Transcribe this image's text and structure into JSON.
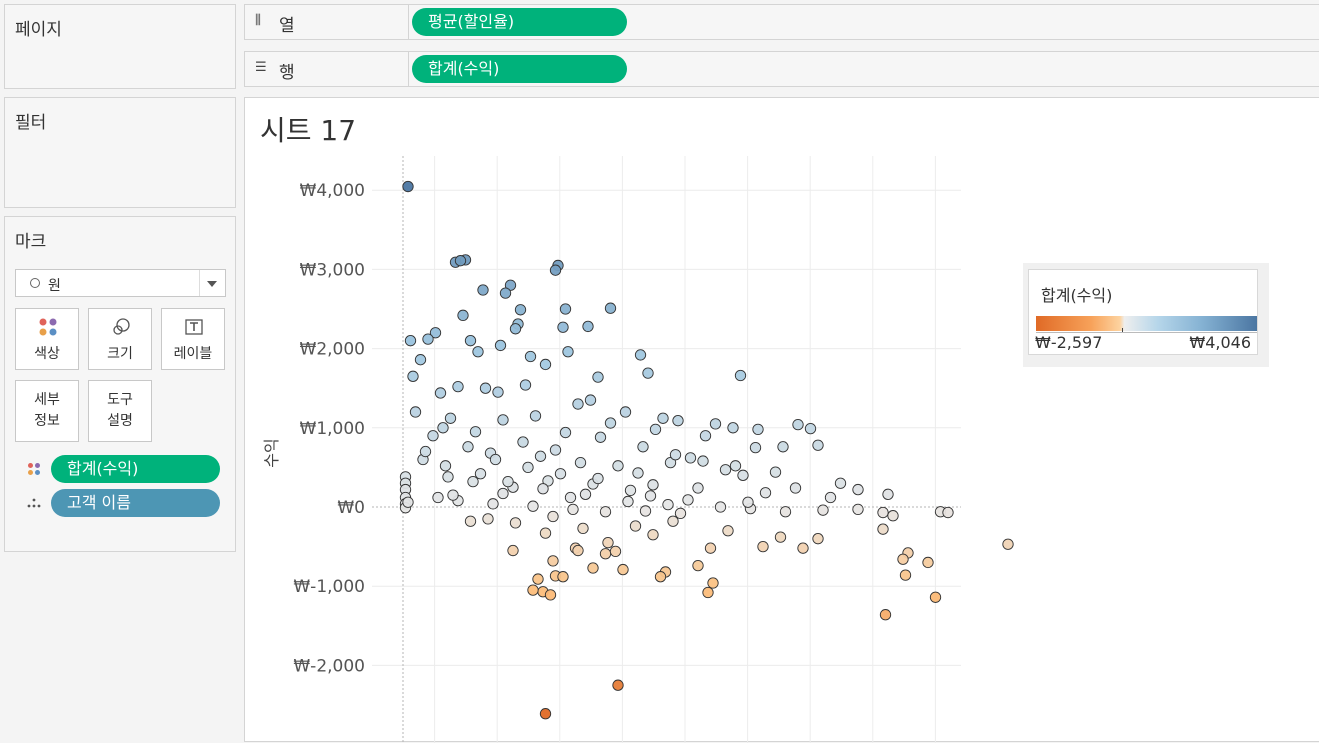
{
  "sidebar": {
    "pages_title": "페이지",
    "filters_title": "필터",
    "marks_title": "마크",
    "mark_type": "원",
    "buttons": {
      "color": "색상",
      "size": "크기",
      "label": "레이블",
      "detail": "세부\n정보",
      "tooltip": "도구\n설명"
    },
    "mark_pills": {
      "color_field": "합계(수익)",
      "detail_field": "고객 이름"
    }
  },
  "shelves": {
    "columns_label": "열",
    "columns_pill": "평균(할인율)",
    "rows_label": "행",
    "rows_pill": "합계(수익)"
  },
  "sheet": {
    "title": "시트 17"
  },
  "legend": {
    "title": "합계(수익)",
    "min_label": "₩-2,597",
    "max_label": "₩4,046"
  },
  "colors": {
    "pill_green": "#00b27b",
    "pill_blue": "#4d96b4",
    "positive_max": "#4b76a2",
    "negative_max": "#e06a26",
    "neutral": "#eeeeee"
  },
  "chart_data": {
    "type": "scatter",
    "title": "",
    "xlabel": "",
    "ylabel": "수익",
    "ylim": [
      -2800,
      4200
    ],
    "yticks": [
      4000,
      3000,
      2000,
      1000,
      0,
      -1000,
      -2000
    ],
    "ytick_labels": [
      "₩4,000",
      "₩3,000",
      "₩2,000",
      "₩1,000",
      "₩0",
      "₩-1,000",
      "₩-2,000"
    ],
    "x_unit": "average discount (index positions, unlabeled axis)",
    "color_range": [
      -2597,
      4046
    ],
    "points": [
      [
        0.02,
        4046
      ],
      [
        0.25,
        3120
      ],
      [
        0.21,
        3090
      ],
      [
        0.23,
        3110
      ],
      [
        0.62,
        3050
      ],
      [
        0.61,
        2990
      ],
      [
        0.43,
        2800
      ],
      [
        0.41,
        2700
      ],
      [
        0.32,
        2740
      ],
      [
        0.83,
        2510
      ],
      [
        0.65,
        2500
      ],
      [
        0.47,
        2490
      ],
      [
        0.24,
        2420
      ],
      [
        0.46,
        2310
      ],
      [
        0.45,
        2250
      ],
      [
        0.13,
        2200
      ],
      [
        0.64,
        2270
      ],
      [
        0.74,
        2280
      ],
      [
        0.03,
        2100
      ],
      [
        0.27,
        2100
      ],
      [
        0.1,
        2120
      ],
      [
        0.39,
        2040
      ],
      [
        0.66,
        1960
      ],
      [
        0.95,
        1920
      ],
      [
        0.07,
        1860
      ],
      [
        0.3,
        1960
      ],
      [
        0.51,
        1900
      ],
      [
        0.78,
        1640
      ],
      [
        0.04,
        1650
      ],
      [
        0.98,
        1690
      ],
      [
        1.35,
        1660
      ],
      [
        0.57,
        1800
      ],
      [
        0.49,
        1540
      ],
      [
        0.15,
        1440
      ],
      [
        0.22,
        1520
      ],
      [
        0.33,
        1500
      ],
      [
        0.05,
        1200
      ],
      [
        0.38,
        1450
      ],
      [
        0.7,
        1300
      ],
      [
        0.75,
        1350
      ],
      [
        0.89,
        1200
      ],
      [
        1.04,
        1120
      ],
      [
        1.1,
        1090
      ],
      [
        1.25,
        1050
      ],
      [
        1.32,
        1000
      ],
      [
        1.42,
        980
      ],
      [
        1.58,
        1040
      ],
      [
        1.63,
        990
      ],
      [
        1.66,
        780
      ],
      [
        1.52,
        760
      ],
      [
        1.41,
        750
      ],
      [
        1.21,
        900
      ],
      [
        1.01,
        980
      ],
      [
        0.83,
        1060
      ],
      [
        0.19,
        1120
      ],
      [
        0.48,
        820
      ],
      [
        0.61,
        720
      ],
      [
        0.08,
        600
      ],
      [
        0.12,
        900
      ],
      [
        0.26,
        760
      ],
      [
        0.35,
        680
      ],
      [
        0.55,
        640
      ],
      [
        0.71,
        560
      ],
      [
        0.86,
        520
      ],
      [
        0.94,
        430
      ],
      [
        1.07,
        560
      ],
      [
        1.15,
        620
      ],
      [
        1.29,
        470
      ],
      [
        1.36,
        400
      ],
      [
        1.49,
        440
      ],
      [
        1.75,
        300
      ],
      [
        1.82,
        220
      ],
      [
        1.94,
        160
      ],
      [
        1.71,
        120
      ],
      [
        1.57,
        240
      ],
      [
        1.45,
        180
      ],
      [
        0.18,
        380
      ],
      [
        0.28,
        320
      ],
      [
        0.44,
        250
      ],
      [
        0.58,
        330
      ],
      [
        0.76,
        290
      ],
      [
        0.91,
        210
      ],
      [
        1.0,
        280
      ],
      [
        1.18,
        240
      ],
      [
        0.01,
        380
      ],
      [
        0.01,
        300
      ],
      [
        0.01,
        220
      ],
      [
        0.01,
        120
      ],
      [
        0.01,
        40
      ],
      [
        0.01,
        -10
      ],
      [
        0.02,
        60
      ],
      [
        0.14,
        120
      ],
      [
        0.22,
        80
      ],
      [
        0.36,
        40
      ],
      [
        0.52,
        10
      ],
      [
        0.68,
        -30
      ],
      [
        0.81,
        -60
      ],
      [
        0.97,
        -50
      ],
      [
        1.11,
        -80
      ],
      [
        1.27,
        0
      ],
      [
        1.39,
        -20
      ],
      [
        1.53,
        -60
      ],
      [
        1.68,
        -40
      ],
      [
        1.82,
        -30
      ],
      [
        1.92,
        -70
      ],
      [
        2.15,
        -60
      ],
      [
        2.18,
        -70
      ],
      [
        1.96,
        -110
      ],
      [
        1.92,
        -280
      ],
      [
        1.66,
        -400
      ],
      [
        1.44,
        -500
      ],
      [
        1.23,
        -520
      ],
      [
        1.0,
        -350
      ],
      [
        0.82,
        -450
      ],
      [
        0.69,
        -520
      ],
      [
        0.57,
        -330
      ],
      [
        0.45,
        -200
      ],
      [
        0.34,
        -150
      ],
      [
        0.27,
        -180
      ],
      [
        0.6,
        -120
      ],
      [
        0.72,
        -270
      ],
      [
        0.93,
        -240
      ],
      [
        1.08,
        -180
      ],
      [
        1.3,
        -300
      ],
      [
        1.51,
        -380
      ],
      [
        1.6,
        -520
      ],
      [
        2.02,
        -580
      ],
      [
        2.0,
        -660
      ],
      [
        2.1,
        -700
      ],
      [
        2.01,
        -860
      ],
      [
        1.93,
        -1360
      ],
      [
        2.13,
        -1140
      ],
      [
        2.42,
        -470
      ],
      [
        1.18,
        -740
      ],
      [
        1.05,
        -820
      ],
      [
        0.88,
        -790
      ],
      [
        0.81,
        -590
      ],
      [
        0.7,
        -550
      ],
      [
        0.61,
        -870
      ],
      [
        0.64,
        -880
      ],
      [
        0.54,
        -910
      ],
      [
        0.56,
        -1070
      ],
      [
        0.52,
        -1050
      ],
      [
        0.59,
        -1110
      ],
      [
        0.6,
        -680
      ],
      [
        0.76,
        -770
      ],
      [
        0.85,
        -560
      ],
      [
        1.24,
        -960
      ],
      [
        1.22,
        -1080
      ],
      [
        0.44,
        -550
      ],
      [
        1.03,
        -880
      ],
      [
        0.86,
        -2250
      ],
      [
        0.57,
        -2610
      ],
      [
        0.16,
        1000
      ],
      [
        0.29,
        950
      ],
      [
        0.4,
        1100
      ],
      [
        0.53,
        1150
      ],
      [
        0.65,
        940
      ],
      [
        0.79,
        880
      ],
      [
        0.96,
        760
      ],
      [
        1.09,
        660
      ],
      [
        1.2,
        580
      ],
      [
        1.33,
        520
      ],
      [
        0.09,
        700
      ],
      [
        0.37,
        600
      ],
      [
        0.5,
        500
      ],
      [
        0.63,
        420
      ],
      [
        0.78,
        360
      ],
      [
        0.99,
        140
      ],
      [
        1.14,
        90
      ],
      [
        1.38,
        60
      ],
      [
        0.17,
        520
      ],
      [
        0.31,
        420
      ],
      [
        0.42,
        320
      ],
      [
        0.56,
        230
      ],
      [
        0.73,
        160
      ],
      [
        0.9,
        70
      ],
      [
        1.06,
        30
      ],
      [
        0.2,
        150
      ],
      [
        0.4,
        170
      ],
      [
        0.67,
        120
      ]
    ]
  }
}
